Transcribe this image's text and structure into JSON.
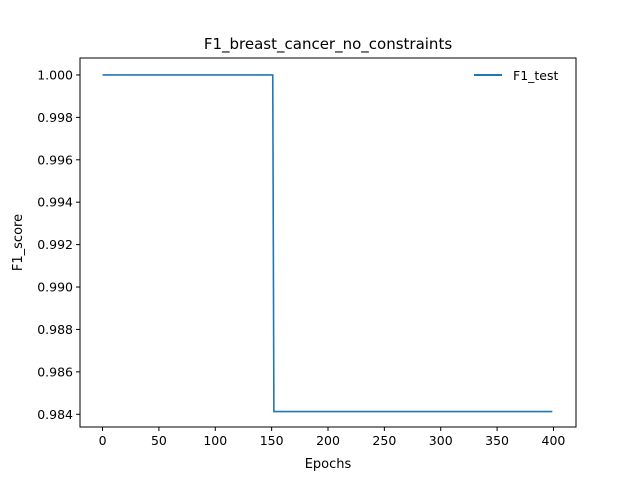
{
  "chart_data": {
    "type": "line",
    "title": "F1_breast_cancer_no_constraints",
    "xlabel": "Epochs",
    "ylabel": "F1_score",
    "xlim": [
      -20,
      420
    ],
    "ylim": [
      0.9834,
      1.0008
    ],
    "x_ticks": [
      0,
      50,
      100,
      150,
      200,
      250,
      300,
      350,
      400
    ],
    "y_ticks": [
      0.984,
      0.986,
      0.988,
      0.99,
      0.992,
      0.994,
      0.996,
      0.998,
      1.0
    ],
    "x_tick_labels": [
      "0",
      "50",
      "100",
      "150",
      "200",
      "250",
      "300",
      "350",
      "400"
    ],
    "y_tick_labels": [
      "0.984",
      "0.986",
      "0.988",
      "0.990",
      "0.992",
      "0.994",
      "0.996",
      "0.998",
      "1.000"
    ],
    "grid": false,
    "legend_position": "top-right",
    "series": [
      {
        "name": "F1_test",
        "color": "#1f77b4",
        "x": [
          0,
          151,
          152,
          399
        ],
        "y": [
          1.0,
          1.0,
          0.98413,
          0.98413
        ]
      }
    ]
  }
}
